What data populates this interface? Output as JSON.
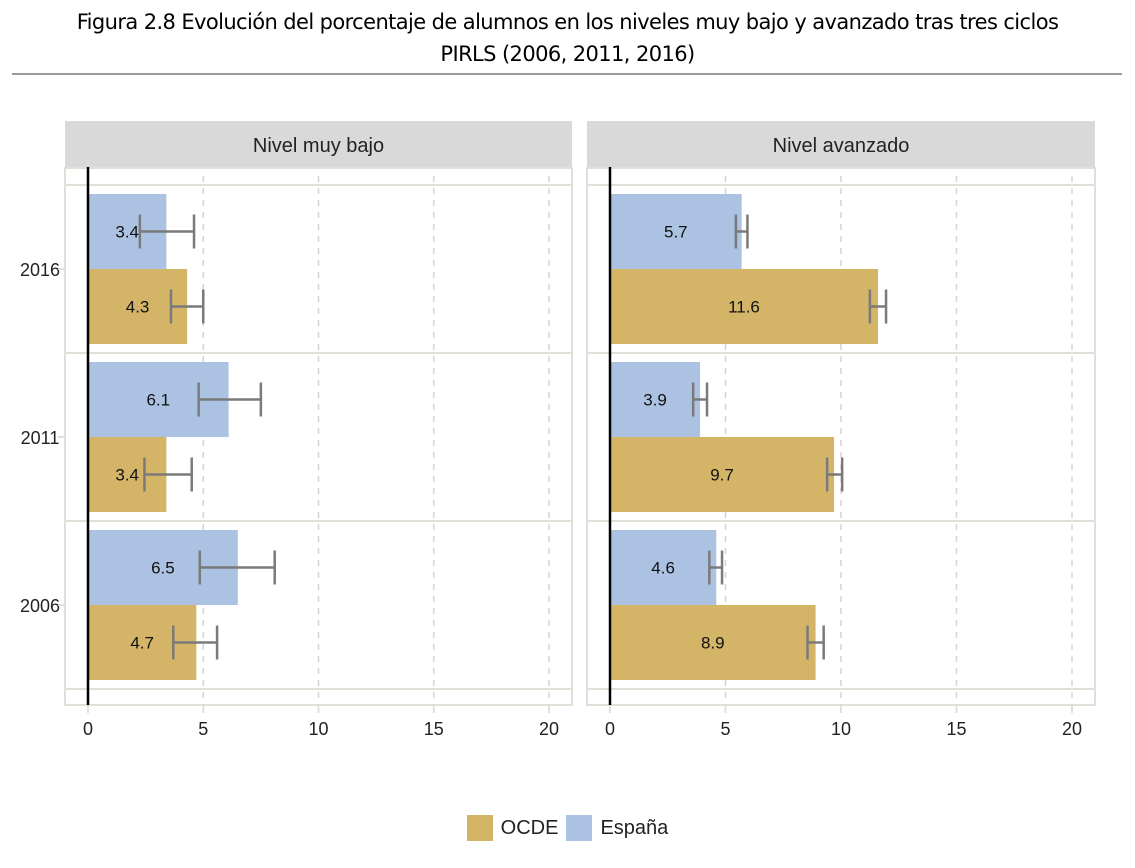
{
  "title_line1": "Figura 2.8 Evolución del porcentaje de alumnos en los niveles muy bajo y avanzado tras tres ciclos",
  "title_line2": "PIRLS (2006, 2011, 2016)",
  "colors": {
    "OCDE": "#d4b467",
    "España": "#abc2e3",
    "error_bar": "#7a7a7a",
    "strip": "#d9d9d9",
    "grid": "#e0e0d8"
  },
  "legend": [
    {
      "name": "OCDE",
      "color": "#d4b467"
    },
    {
      "name": "España",
      "color": "#abc2e3"
    }
  ],
  "chart_data": {
    "type": "bar",
    "orientation": "horizontal",
    "facets": [
      "Nivel muy bajo",
      "Nivel avanzado"
    ],
    "categories": [
      "2016",
      "2011",
      "2006"
    ],
    "xlim": [
      0,
      20
    ],
    "xticks": [
      0,
      5,
      10,
      15,
      20
    ],
    "grid": "vertical dashed",
    "legend_position": "bottom",
    "panels": [
      {
        "facet": "Nivel muy bajo",
        "series": [
          {
            "name": "España",
            "values": [
              3.4,
              6.1,
              6.5
            ],
            "ci_low": [
              2.25,
              4.8,
              4.85
            ],
            "ci_high": [
              4.6,
              7.5,
              8.1
            ]
          },
          {
            "name": "OCDE",
            "values": [
              4.3,
              3.4,
              4.7
            ],
            "ci_low": [
              3.6,
              2.45,
              3.7
            ],
            "ci_high": [
              5.0,
              4.5,
              5.6
            ]
          }
        ]
      },
      {
        "facet": "Nivel avanzado",
        "series": [
          {
            "name": "España",
            "values": [
              5.7,
              3.9,
              4.6
            ],
            "ci_low": [
              5.45,
              3.6,
              4.3
            ],
            "ci_high": [
              5.95,
              4.2,
              4.85
            ]
          },
          {
            "name": "OCDE",
            "values": [
              11.6,
              9.7,
              8.9
            ],
            "ci_low": [
              11.25,
              9.4,
              8.55
            ],
            "ci_high": [
              11.95,
              10.05,
              9.25
            ]
          }
        ]
      }
    ]
  }
}
